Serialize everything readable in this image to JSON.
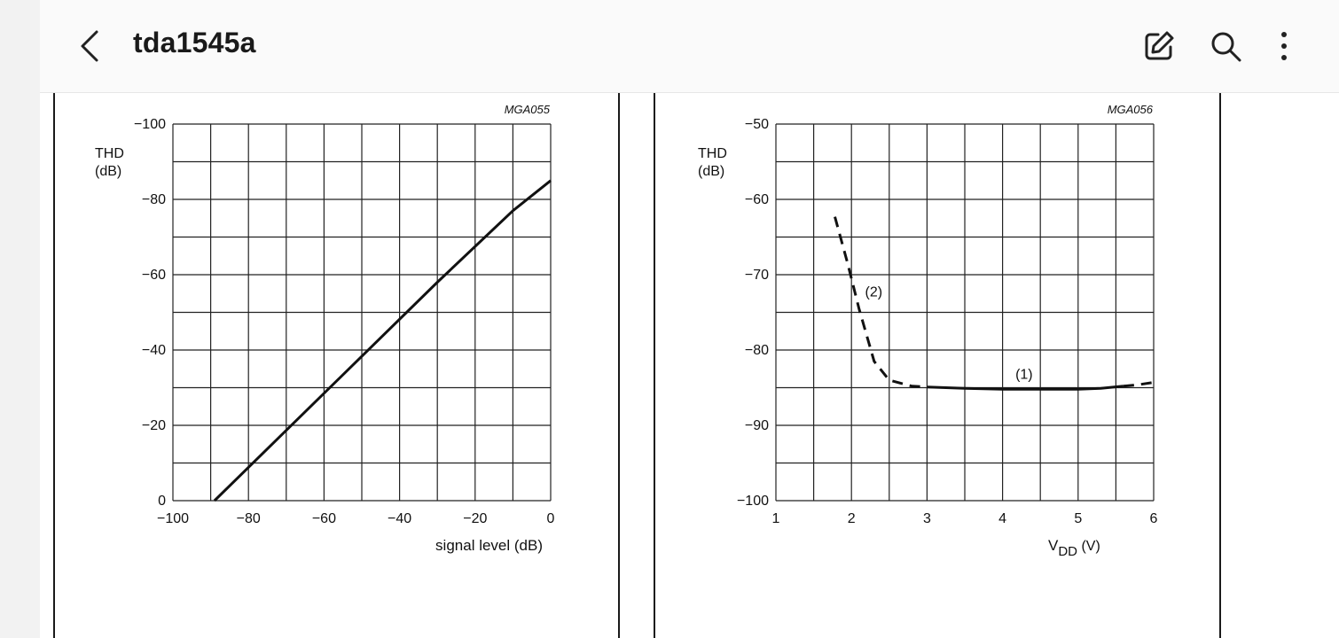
{
  "header": {
    "title": "tda1545a",
    "icons": [
      "back-chevron-icon",
      "edit-icon",
      "search-icon",
      "more-vert-icon"
    ]
  },
  "charts": [
    {
      "id": "MGA055",
      "chart_data": {
        "type": "line",
        "label": "MGA055",
        "ylabel_line1": "THD",
        "ylabel_line2": "(dB)",
        "xlabel": "signal level  (dB)",
        "xlim": [
          -100,
          0
        ],
        "ylim": [
          0,
          -100
        ],
        "x_ticks": [
          "−100",
          "−80",
          "−60",
          "−40",
          "−20",
          "0"
        ],
        "y_ticks": [
          "−100",
          "−80",
          "−60",
          "−40",
          "−20",
          "0"
        ],
        "grid": true,
        "series": [
          {
            "style": "solid",
            "x": [
              -89,
              -30,
              -10,
              0
            ],
            "y": [
              0,
              -58,
              -77,
              -85
            ]
          }
        ]
      }
    },
    {
      "id": "MGA056",
      "chart_data": {
        "type": "line",
        "label": "MGA056",
        "ylabel_line1": "THD",
        "ylabel_line2": "(dB)",
        "xlabel_main": "V",
        "xlabel_sub": "DD",
        "xlabel_unit": " (V)",
        "xlim": [
          1,
          6
        ],
        "ylim": [
          -100,
          -50
        ],
        "x_ticks": [
          "1",
          "2",
          "3",
          "4",
          "5",
          "6"
        ],
        "y_ticks": [
          "−50",
          "−60",
          "−70",
          "−80",
          "−90",
          "−100"
        ],
        "grid": true,
        "series": [
          {
            "name": "(2)",
            "style": "dashed",
            "x": [
              1.78,
              1.95,
              2.1,
              2.3,
              2.5,
              2.8,
              3.0
            ],
            "y": [
              -62.3,
              -68.5,
              -74.5,
              -81.5,
              -84,
              -84.8,
              -84.9
            ]
          },
          {
            "name": "(1)",
            "style": "solid",
            "x": [
              3.0,
              3.5,
              4.0,
              4.5,
              5.0,
              5.3,
              5.6
            ],
            "y": [
              -84.9,
              -85.1,
              -85.2,
              -85.2,
              -85.2,
              -85.1,
              -84.8
            ]
          },
          {
            "name": "",
            "style": "dashed",
            "x": [
              5.6,
              5.8,
              6.0
            ],
            "y": [
              -84.8,
              -84.6,
              -84.3
            ]
          }
        ],
        "annotations": [
          "(2)",
          "(1)"
        ]
      }
    }
  ]
}
